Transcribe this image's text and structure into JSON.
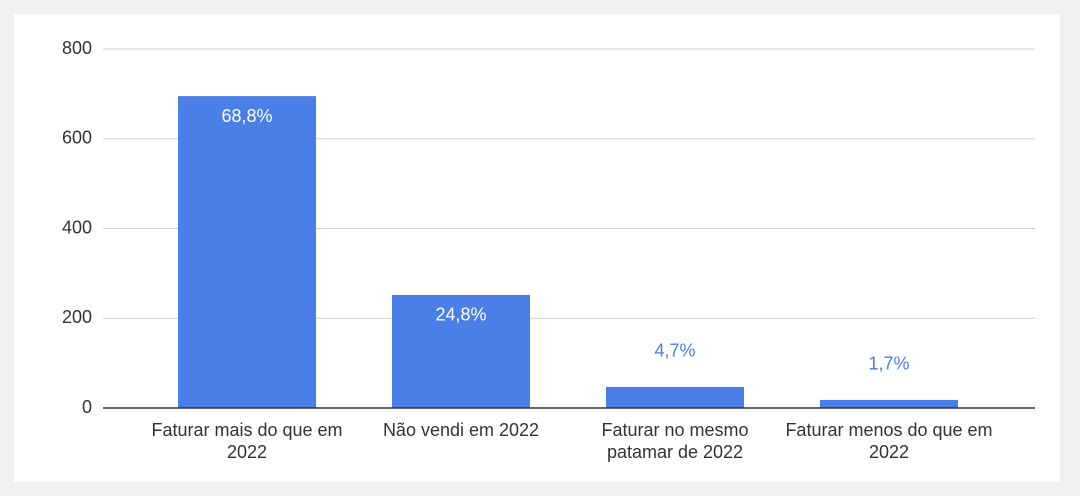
{
  "chart_data": {
    "type": "bar",
    "categories": [
      "Faturar mais do que em 2022",
      "Não vendi em 2022",
      "Faturar no mesmo patamar de 2022",
      "Faturar menos do que em 2022"
    ],
    "values": [
      695,
      252,
      47,
      18
    ],
    "annotations": [
      "68,8%",
      "24,8%",
      "4,7%",
      "1,7%"
    ],
    "color": "#4a7fe8",
    "ylim": [
      0,
      800
    ],
    "yticks": [
      0,
      200,
      400,
      600,
      800
    ],
    "grid": true
  }
}
